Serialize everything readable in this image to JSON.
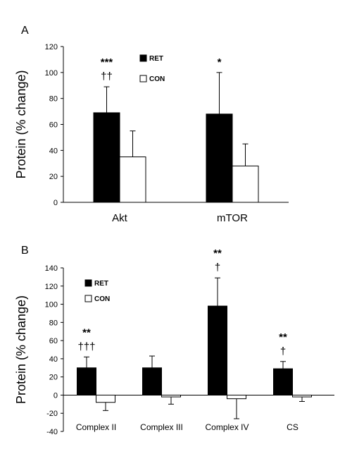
{
  "chart_data": [
    {
      "panel": "A",
      "type": "bar",
      "ylabel": "Protein (% change)",
      "ylim": [
        0,
        120
      ],
      "yticks": [
        "0",
        "20",
        "40",
        "60",
        "80",
        "100",
        "120"
      ],
      "categories": [
        "Akt",
        "mTOR"
      ],
      "series": [
        {
          "name": "RET",
          "color": "#000000",
          "values": [
            69,
            68
          ],
          "errors": [
            20,
            32
          ]
        },
        {
          "name": "CON",
          "color": "#ffffff",
          "values": [
            35,
            28
          ],
          "errors": [
            20,
            17
          ]
        }
      ],
      "annotations": [
        {
          "category": 0,
          "series": 0,
          "lines": [
            "***",
            "††"
          ]
        },
        {
          "category": 1,
          "series": 0,
          "lines": [
            "*"
          ]
        }
      ],
      "legend_position": "top-center"
    },
    {
      "panel": "B",
      "type": "bar",
      "ylabel": "Protein (% change)",
      "ylim": [
        -40,
        140
      ],
      "yticks": [
        "-40",
        "-20",
        "0",
        "20",
        "40",
        "60",
        "80",
        "100",
        "120",
        "140"
      ],
      "categories": [
        "Complex II",
        "Complex III",
        "Complex IV",
        "CS"
      ],
      "series": [
        {
          "name": "RET",
          "color": "#000000",
          "values": [
            30,
            30,
            98,
            29
          ],
          "errors": [
            12,
            13,
            31,
            8
          ]
        },
        {
          "name": "CON",
          "color": "#ffffff",
          "values": [
            -8,
            -2,
            -4,
            -2
          ],
          "errors": [
            9,
            8,
            22,
            5
          ]
        }
      ],
      "annotations": [
        {
          "category": 0,
          "series": 0,
          "lines": [
            "**",
            "†††"
          ]
        },
        {
          "category": 2,
          "series": 0,
          "lines": [
            "**",
            "†"
          ]
        },
        {
          "category": 3,
          "series": 0,
          "lines": [
            "**",
            "†"
          ]
        }
      ],
      "legend_position": "top-left"
    }
  ]
}
